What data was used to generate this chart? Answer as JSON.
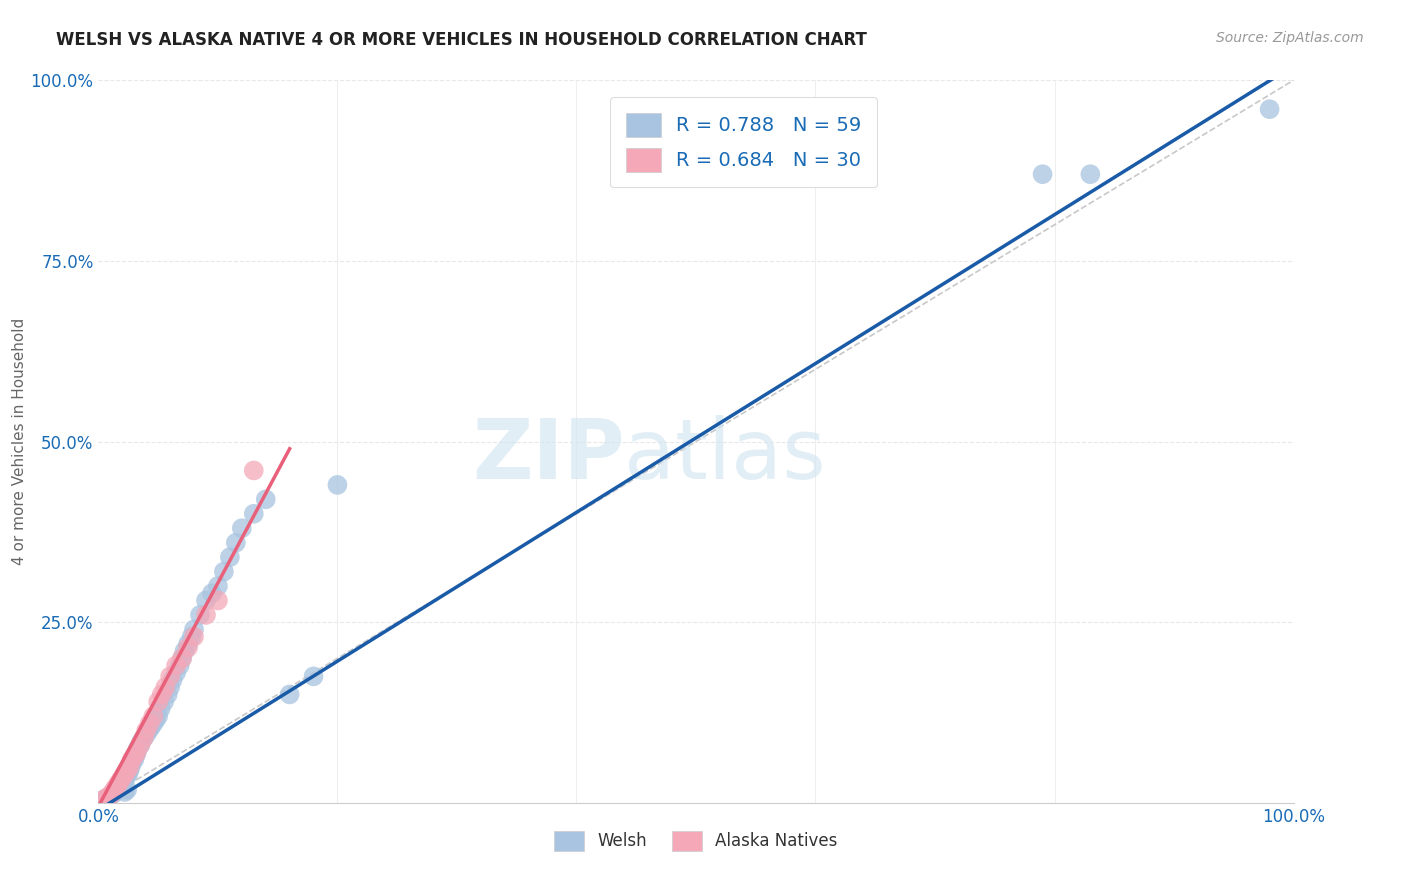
{
  "title": "WELSH VS ALASKA NATIVE 4 OR MORE VEHICLES IN HOUSEHOLD CORRELATION CHART",
  "source": "Source: ZipAtlas.com",
  "ylabel": "4 or more Vehicles in Household",
  "xlim": [
    0.0,
    1.0
  ],
  "ylim": [
    0.0,
    1.0
  ],
  "x_ticks": [
    0.0,
    0.2,
    0.4,
    0.6,
    0.8,
    1.0
  ],
  "y_ticks": [
    0.0,
    0.25,
    0.5,
    0.75,
    1.0
  ],
  "x_tick_labels": [
    "0.0%",
    "",
    "",
    "",
    "",
    "100.0%"
  ],
  "y_tick_labels": [
    "",
    "25.0%",
    "50.0%",
    "75.0%",
    "100.0%"
  ],
  "welsh_color": "#a8c4e0",
  "alaska_color": "#f4a8b8",
  "welsh_line_color": "#1a5ba8",
  "alaska_line_color": "#e8607a",
  "diagonal_color": "#c8c8c8",
  "legend_welsh_label": "R = 0.788   N = 59",
  "legend_alaska_label": "R = 0.684   N = 30",
  "watermark_zip": "ZIP",
  "watermark_atlas": "atlas",
  "welsh_R": 0.788,
  "welsh_N": 59,
  "alaska_R": 0.684,
  "alaska_N": 30,
  "welsh_x": [
    0.005,
    0.008,
    0.01,
    0.012,
    0.014,
    0.015,
    0.016,
    0.018,
    0.019,
    0.02,
    0.021,
    0.022,
    0.023,
    0.024,
    0.025,
    0.026,
    0.027,
    0.028,
    0.03,
    0.031,
    0.032,
    0.033,
    0.035,
    0.036,
    0.038,
    0.04,
    0.042,
    0.044,
    0.046,
    0.048,
    0.05,
    0.052,
    0.055,
    0.058,
    0.06,
    0.062,
    0.065,
    0.068,
    0.07,
    0.072,
    0.075,
    0.078,
    0.08,
    0.085,
    0.09,
    0.095,
    0.1,
    0.105,
    0.11,
    0.115,
    0.12,
    0.13,
    0.14,
    0.16,
    0.18,
    0.2,
    0.79,
    0.83,
    0.98
  ],
  "welsh_y": [
    0.005,
    0.008,
    0.01,
    0.012,
    0.015,
    0.018,
    0.02,
    0.022,
    0.025,
    0.028,
    0.03,
    0.015,
    0.035,
    0.018,
    0.04,
    0.045,
    0.05,
    0.055,
    0.06,
    0.065,
    0.07,
    0.075,
    0.08,
    0.085,
    0.09,
    0.095,
    0.1,
    0.105,
    0.11,
    0.115,
    0.12,
    0.13,
    0.14,
    0.15,
    0.16,
    0.17,
    0.18,
    0.19,
    0.2,
    0.21,
    0.22,
    0.23,
    0.24,
    0.26,
    0.28,
    0.29,
    0.3,
    0.32,
    0.34,
    0.36,
    0.38,
    0.4,
    0.42,
    0.15,
    0.175,
    0.44,
    0.87,
    0.87,
    0.96
  ],
  "alaska_x": [
    0.005,
    0.008,
    0.01,
    0.012,
    0.014,
    0.016,
    0.018,
    0.02,
    0.022,
    0.024,
    0.026,
    0.028,
    0.03,
    0.032,
    0.035,
    0.038,
    0.04,
    0.043,
    0.046,
    0.05,
    0.053,
    0.056,
    0.06,
    0.065,
    0.07,
    0.075,
    0.08,
    0.09,
    0.1,
    0.13
  ],
  "alaska_y": [
    0.005,
    0.008,
    0.01,
    0.015,
    0.02,
    0.025,
    0.03,
    0.035,
    0.04,
    0.045,
    0.05,
    0.06,
    0.065,
    0.07,
    0.08,
    0.09,
    0.1,
    0.11,
    0.12,
    0.14,
    0.15,
    0.16,
    0.175,
    0.19,
    0.2,
    0.215,
    0.23,
    0.26,
    0.28,
    0.46
  ],
  "welsh_line_x0": 0.0,
  "welsh_line_y0": -0.01,
  "welsh_line_x1": 1.0,
  "welsh_line_y1": 1.02,
  "alaska_line_x0": 0.0,
  "alaska_line_y0": -0.005,
  "alaska_line_x1": 0.16,
  "alaska_line_y1": 0.49,
  "background_color": "#ffffff",
  "grid_color": "#e8e8e8"
}
